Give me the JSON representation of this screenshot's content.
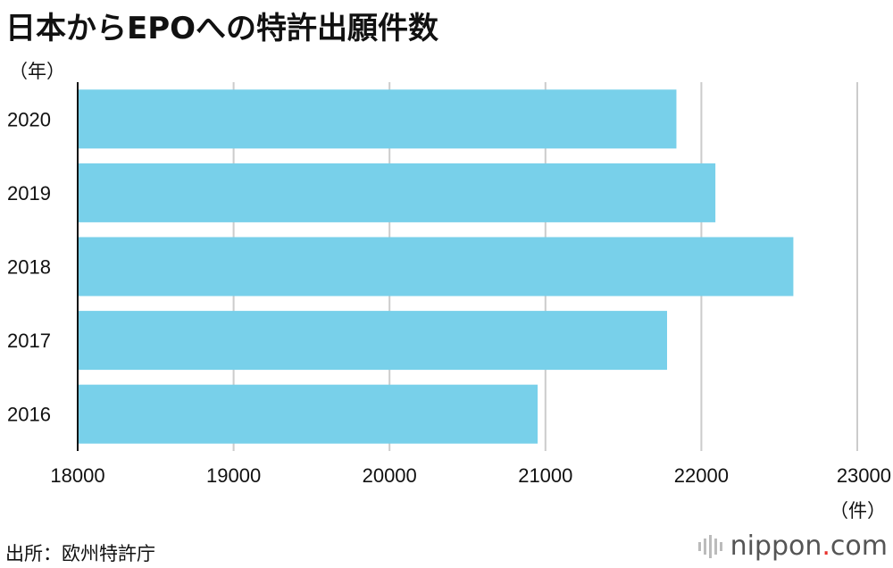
{
  "title": "日本からEPOへの特許出願件数",
  "y_unit": "（年）",
  "x_unit": "（件）",
  "source": "出所：欧州特許庁",
  "logo": {
    "name": "nippon",
    "dot": ".",
    "suffix": "com",
    "icon": "sound-bars-icon"
  },
  "colors": {
    "bar": "#78d0ea",
    "grid": "#cccccc",
    "axis": "#111111"
  },
  "chart_data": {
    "type": "bar",
    "orientation": "horizontal",
    "categories": [
      "2020",
      "2019",
      "2018",
      "2017",
      "2016"
    ],
    "values": [
      21840,
      22090,
      22590,
      21780,
      20950
    ],
    "xlim": [
      18000,
      23000
    ],
    "xticks": [
      18000,
      19000,
      20000,
      21000,
      22000,
      23000
    ],
    "grid": true,
    "title": "日本からEPOへの特許出願件数",
    "xlabel": "（件）",
    "ylabel": "（年）"
  }
}
